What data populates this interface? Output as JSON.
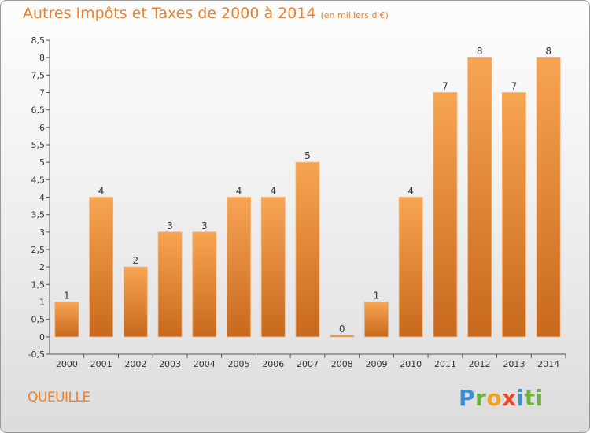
{
  "title": {
    "main": "Autres Impôts et Taxes de 2000 à 2014",
    "unit": "(en milliers d'€)"
  },
  "commune": "QUEUILLE",
  "logo": {
    "text": "Proxiti",
    "letters": [
      "P",
      "r",
      "o",
      "x",
      "i",
      "ti"
    ]
  },
  "colors": {
    "title": "#e8822e",
    "bar_light": "#f7a552",
    "bar_dark": "#c8681c"
  },
  "chart_data": {
    "type": "bar",
    "title": "Autres Impôts et Taxes de 2000 à 2014",
    "subtitle": "(en milliers d'€)",
    "xlabel": "",
    "ylabel": "",
    "categories": [
      "2000",
      "2001",
      "2002",
      "2003",
      "2004",
      "2005",
      "2006",
      "2007",
      "2008",
      "2009",
      "2010",
      "2011",
      "2012",
      "2013",
      "2014"
    ],
    "values": [
      1,
      4,
      2,
      3,
      3,
      4,
      4,
      5,
      0,
      1,
      4,
      7,
      8,
      7,
      8
    ],
    "value_labels": [
      "1",
      "4",
      "2",
      "3",
      "3",
      "4",
      "4",
      "5",
      "0",
      "1",
      "4",
      "7",
      "8",
      "7",
      "8"
    ],
    "ylim": [
      -0.5,
      8.5
    ],
    "yticks": [
      "-0,5",
      "0",
      "0,5",
      "1",
      "1,5",
      "2",
      "2,5",
      "3",
      "3,5",
      "4",
      "4,5",
      "5",
      "5,5",
      "6",
      "6,5",
      "7",
      "7,5",
      "8",
      "8,5"
    ],
    "grid": false,
    "legend": "none"
  }
}
